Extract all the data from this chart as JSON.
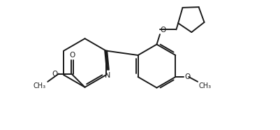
{
  "bg_color": "#ffffff",
  "line_color": "#1a1a1a",
  "line_width": 1.4,
  "fig_width": 4.02,
  "fig_height": 1.86,
  "dpi": 100,
  "xlim": [
    0,
    10.5
  ],
  "ylim": [
    0,
    4.88
  ]
}
